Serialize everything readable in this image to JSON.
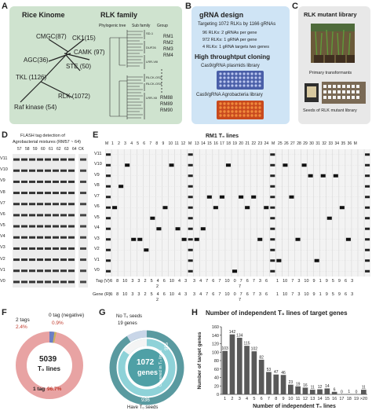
{
  "panelA": {
    "label": "A",
    "title_kinome": "Rice Kinome",
    "title_family": "RLK family",
    "kinases": [
      "CMGC(87)",
      "CK1(15)",
      "AGC(36)",
      "CAMK (97)",
      "STE (50)",
      "TKL (1126)",
      "RLK (1072)",
      "Raf kinase (54)"
    ],
    "tree_headers": [
      "Phylogenic tree",
      "Sub family",
      "Group"
    ],
    "subfamilies": [
      "SD-1",
      "DUF26",
      "LRR-VIII",
      "RLCK-OS2",
      "RLCK-OS4",
      "LRR-XII"
    ],
    "groups": [
      "RM1",
      "RM2",
      "RM3",
      "RM4",
      "RM88",
      "RM89",
      "RM90"
    ]
  },
  "panelB": {
    "label": "B",
    "title1": "gRNA design",
    "line1": "Targeting 1072 RLKs by 1166 gRNAs",
    "bullets": [
      "96 RLKs: 2 gRNAs per gene",
      "972 RLKs: 1 gRNA   per gene",
      "4 RLKs: 1 gRNA  targets two genes"
    ],
    "title2": "High throughtput cloning",
    "lib1": "Cas9/gRNA plasmids library",
    "lib2": "Cas9/gRNA Agrobacteria library"
  },
  "panelC": {
    "label": "C",
    "title": "RLK mutant library",
    "cap1": "Primary transformants",
    "cap2": "Seeds of RLK mutant library"
  },
  "panelD": {
    "label": "D",
    "title1": "FLASH tag detection of",
    "title2": "Agrobacterial mixtures (RM57 ~ 64)",
    "lanes": [
      "57",
      "58",
      "59",
      "60",
      "61",
      "62",
      "63",
      "64"
    ],
    "ck": "CK",
    "rows": [
      "V11",
      "V10",
      "V9",
      "V8",
      "V7",
      "V6",
      "V5",
      "V4",
      "V3",
      "V2",
      "V1",
      "V0"
    ]
  },
  "panelE": {
    "label": "E",
    "title": "RM1 T₀ lines",
    "lanes_left": [
      "M",
      "1",
      "2",
      "3",
      "4",
      "5",
      "6",
      "7",
      "8",
      "9",
      "10",
      "11",
      "12"
    ],
    "lanes_mid": [
      "M",
      "13",
      "14",
      "15",
      "16",
      "17",
      "18",
      "19",
      "20",
      "21",
      "22",
      "23",
      "24"
    ],
    "lanes_right": [
      "M",
      "25",
      "26",
      "27",
      "28",
      "29",
      "30",
      "31",
      "32",
      "33",
      "34",
      "35",
      "36",
      "M"
    ],
    "rows": [
      "V11",
      "V10",
      "V9",
      "V8",
      "V7",
      "V6",
      "V5",
      "V4",
      "V3",
      "V2",
      "V1",
      "V0"
    ],
    "tag_label": "Tag (V) :",
    "gene_label": "Gene (R) :",
    "tag_left": "6 8 10 3 3 2 5 4 6 10 4 3",
    "tag_left_sub": "2",
    "gene_left": "6 8 10 3 3 2 5 4 6 10 4 3",
    "gene_left_sub": "2",
    "tag_mid": "3 4 7 6 7 10 0 7 6 7 3 6",
    "tag_mid_sub": "7",
    "gene_mid": "3 4 7 6 7 10 0 7 6 7 3 6",
    "gene_mid_sub": "7",
    "tag_right": "1 10 7 3 10 9 1 9 5 9 6 3",
    "gene_right": "1 10 7 3 10 9 1 9 5 9 6 3"
  },
  "panelF": {
    "label": "F",
    "center_num": "5039",
    "center_text": "T₀ lines",
    "tag2_label": "2 tags",
    "tag2_pct": "2.4%",
    "tag0_label": "0 tag (negative)",
    "tag0_pct": "0.9%",
    "tag1_label": "1 tag",
    "tag1_pct": "96.7%",
    "colors": {
      "one_tag": "#e8a3a3",
      "two_tags": "#6b7fc4",
      "zero_tag": "#c9b25a"
    }
  },
  "panelG": {
    "label": "G",
    "no_seeds_l1": "No T₀ seeds",
    "no_seeds_l2": "19 genes",
    "center_num": "1072",
    "center_text": "genes",
    "covered": "Covered in T₀ lines",
    "covered_num": "955",
    "have_num": "936",
    "have_text": "Have T₀ seeds"
  },
  "panelH": {
    "label": "H",
    "title": "Number of independent T₀ lines of target genes"
  },
  "chart_data": {
    "type": "bar",
    "title": "Number of independent T₀ lines of target genes",
    "xlabel": "Number of independent T₀ lines",
    "ylabel": "Number of target genes",
    "categories": [
      "1",
      "2",
      "3",
      "4",
      "5",
      "6",
      "7",
      "8",
      "9",
      "10",
      "11",
      "12",
      "13",
      "14",
      "15",
      "16",
      "17",
      "18",
      "19",
      ">20"
    ],
    "values": [
      103,
      142,
      134,
      115,
      102,
      82,
      53,
      47,
      46,
      23,
      19,
      16,
      11,
      12,
      14,
      6,
      0,
      1,
      0,
      11
    ],
    "ylim": [
      0,
      160
    ],
    "yticks": [
      "0",
      "20",
      "40",
      "60",
      "80",
      "100",
      "120",
      "140",
      "160"
    ]
  }
}
